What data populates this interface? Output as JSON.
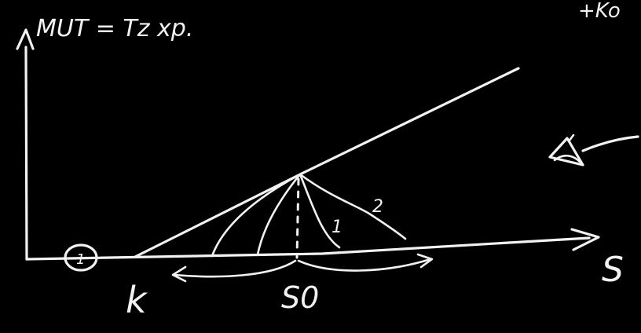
{
  "whiteboard": {
    "heading": "MUT = Tz xp.",
    "x_axis_label": "S",
    "point_k_label": "k",
    "point_s0_label": "S0",
    "curve_label_1": "1",
    "curve_label_2": "2",
    "circle_label": "1",
    "corner_text": "+Ko",
    "ink_color": "#f2f2f2",
    "background_color": "#000000"
  }
}
